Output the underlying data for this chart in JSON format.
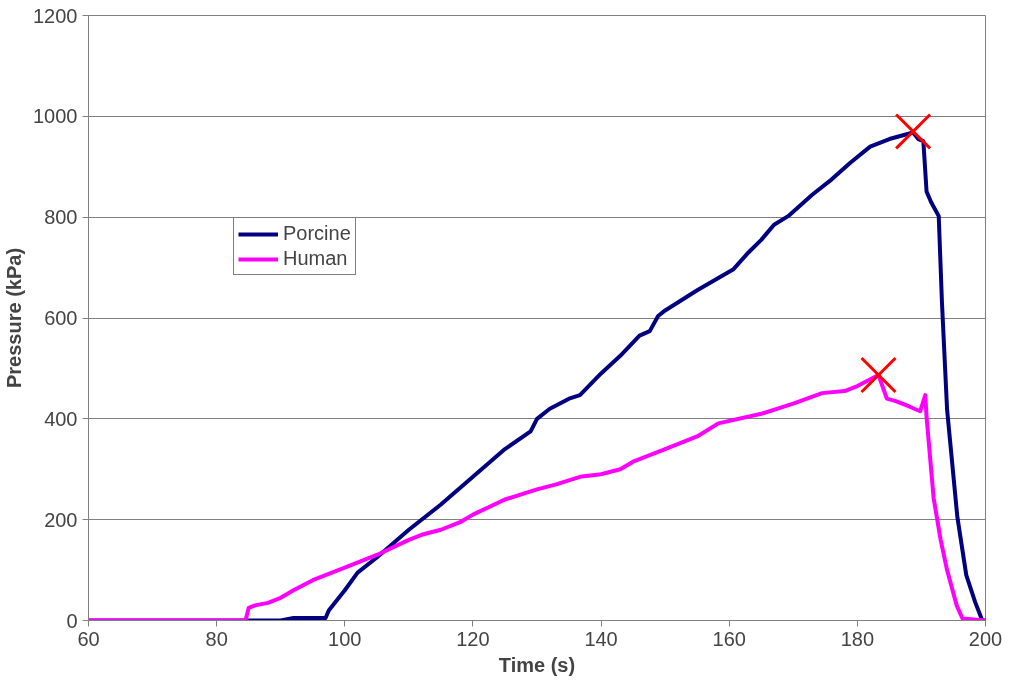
{
  "chart_data": {
    "type": "line",
    "xlabel": "Time (s)",
    "ylabel": "Pressure (kPa)",
    "xlim": [
      60,
      200
    ],
    "xticks": [
      60,
      80,
      100,
      120,
      140,
      160,
      180,
      200
    ],
    "ylim": [
      0,
      1200
    ],
    "yticks": [
      0,
      200,
      400,
      600,
      800,
      1000,
      1200
    ],
    "grid": "y",
    "legend": "top left",
    "line_style": "solid",
    "marker": "none",
    "series": [
      {
        "name": "Porcine",
        "color": "#000080",
        "x": [
          60,
          90,
          92,
          97,
          97.5,
          100,
          102,
          105,
          110,
          115,
          120,
          125,
          129,
          130,
          132,
          135,
          136.7,
          140,
          143,
          146,
          147.6,
          148.9,
          150,
          155,
          160.6,
          163,
          165,
          167,
          169.2,
          173,
          176,
          178.9,
          182,
          185,
          188.7,
          189.5,
          190.3,
          190.8,
          191.5,
          192.7,
          193.2,
          194,
          195.6,
          197,
          198.4,
          199.5,
          200
        ],
        "values": [
          0,
          0,
          5,
          5,
          20,
          60,
          95,
          125,
          180,
          230,
          285,
          340,
          375,
          400,
          420,
          440,
          447,
          490,
          525,
          565,
          574,
          604,
          615,
          655,
          696,
          730,
          755,
          785,
          802,
          845,
          875,
          908,
          940,
          955,
          968,
          955,
          951,
          851,
          830,
          802,
          632,
          419,
          206,
          90,
          36,
          0,
          0
        ]
      },
      {
        "name": "Human",
        "color": "#ff00ff",
        "x": [
          60,
          84.5,
          85,
          86,
          88,
          90,
          92,
          95,
          100,
          105,
          110,
          112,
          115,
          118,
          120,
          125,
          130,
          133,
          136.7,
          140,
          143,
          145,
          150,
          155,
          158.3,
          165,
          170,
          174.5,
          178,
          180,
          183.3,
          184.6,
          186,
          188,
          189.8,
          190.6,
          190.8,
          191.9,
          193,
          194,
          195.5,
          196.4,
          200
        ],
        "values": [
          0,
          0,
          25,
          30,
          35,
          45,
          60,
          80,
          105,
          130,
          160,
          170,
          180,
          195,
          210,
          240,
          260,
          270,
          285,
          290,
          300,
          315,
          340,
          365,
          391,
          410,
          430,
          451,
          455,
          465,
          487,
          440,
          435,
          425,
          415,
          447,
          404,
          243,
          160,
          100,
          30,
          4,
          0
        ]
      },
      {
        "type": "scatter",
        "marker": "cross",
        "color": "#ff0000",
        "x": [
          188.7,
          183.3
        ],
        "values": [
          970,
          487
        ]
      }
    ]
  }
}
